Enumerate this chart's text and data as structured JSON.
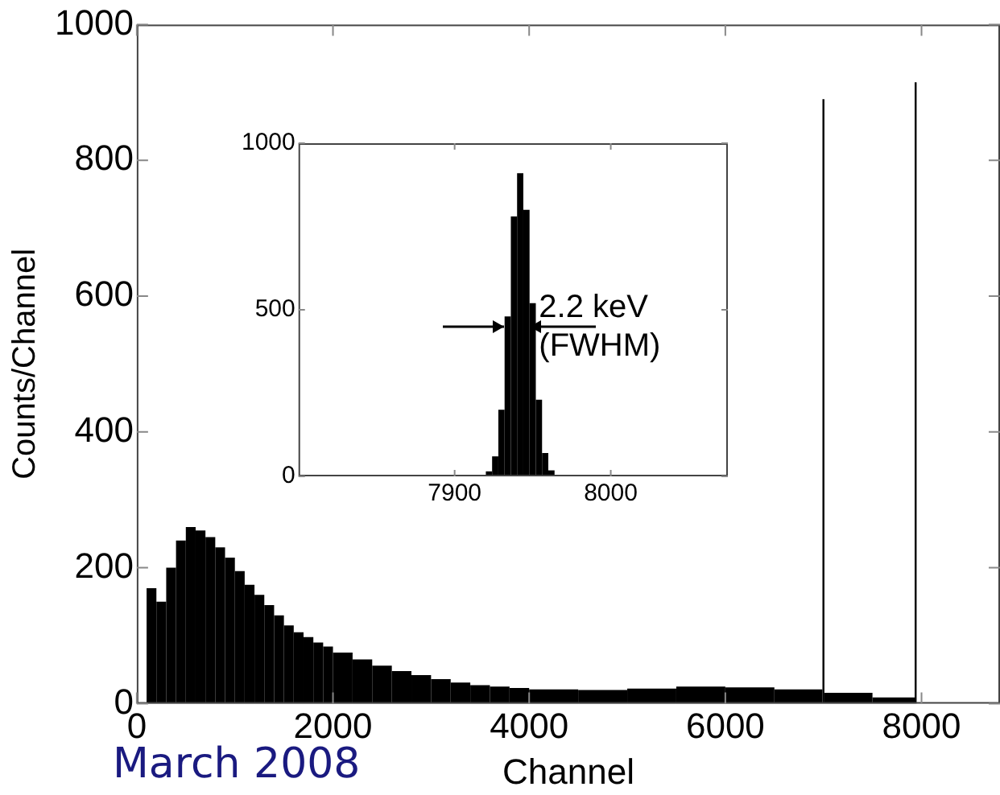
{
  "chart_data": [
    {
      "type": "histogram",
      "xlabel": "Channel",
      "ylabel": "Counts/Channel",
      "bins": [
        100,
        200,
        300,
        400,
        500,
        600,
        700,
        800,
        900,
        1000,
        1100,
        1200,
        1300,
        1400,
        1500,
        1600,
        1700,
        1800,
        1900,
        2000,
        2200,
        2400,
        2600,
        2800,
        3000,
        3200,
        3400,
        3600,
        3800,
        4000,
        4500,
        5000,
        5500,
        6000,
        6500,
        6990,
        7010,
        7500,
        7930,
        7950
      ],
      "values": [
        170,
        150,
        200,
        240,
        260,
        255,
        245,
        230,
        215,
        195,
        175,
        160,
        145,
        130,
        115,
        105,
        98,
        90,
        84,
        75,
        65,
        56,
        48,
        42,
        36,
        31,
        27,
        25,
        23,
        21,
        20,
        22,
        25,
        24,
        21,
        890,
        16,
        9,
        915
      ],
      "color": "#000000",
      "xlim": [
        0,
        8800
      ],
      "ylim": [
        0,
        1000
      ],
      "xticks": [
        0,
        2000,
        4000,
        6000,
        8000
      ],
      "yticks": [
        0,
        200,
        400,
        600,
        800,
        1000
      ],
      "grid": false,
      "annotations": [
        "March 2008"
      ]
    },
    {
      "type": "histogram",
      "bins": [
        7920,
        7924,
        7928,
        7932,
        7936,
        7940,
        7944,
        7948,
        7952,
        7956,
        7960,
        7964
      ],
      "values": [
        15,
        60,
        200,
        480,
        780,
        910,
        800,
        520,
        230,
        70,
        18
      ],
      "color": "#000000",
      "xlim": [
        7800,
        8075
      ],
      "ylim": [
        0,
        1000
      ],
      "xticks": [
        7900,
        8000
      ],
      "yticks": [
        0,
        500,
        1000
      ],
      "grid": false,
      "annotations": [
        "2.2 keV (FWHM)"
      ]
    }
  ]
}
